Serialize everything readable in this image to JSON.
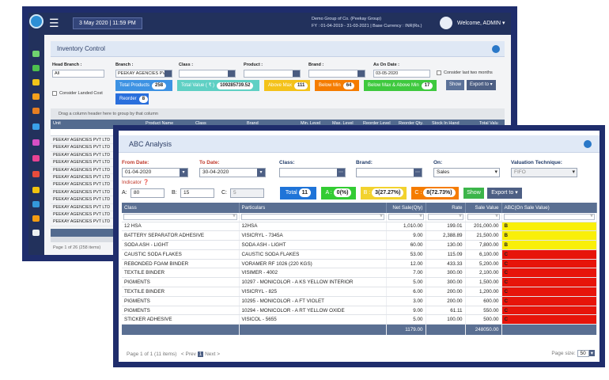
{
  "back": {
    "date_chip": "3 May 2020 | 11:59 PM",
    "group_line1": "Demo Group of Co. (Peekay Group)",
    "group_line2": "FY : 01-04-2019 - 31-03-2021  |  Base Currency : INR(Rs.)",
    "welcome": "Welcome, ADMIN",
    "panel_title": "Inventory Control",
    "filters": {
      "head_branch_label": "Head Branch :",
      "head_branch_value": "All",
      "branch_label": "Branch :",
      "branch_value": "PEEKAY AGENCIES PVT",
      "class_label": "Class :",
      "product_label": "Product :",
      "brand_label": "Brand :",
      "as_on_date_label": "As On Date :",
      "as_on_date_value": "03-05-2020",
      "consider_last_two": "Consider last two months",
      "consider_landed_cost": "Consider Landed Cost"
    },
    "pills": {
      "total_products": "Total Products",
      "total_products_n": "258",
      "total_value": "Total Value ( ₹ )",
      "total_value_n": "109285739.52",
      "above_max": "Above Max",
      "above_max_n": "111",
      "below_min": "Below Min",
      "below_min_n": "64",
      "below_above": "Below Max & Above Min",
      "below_above_n": "17",
      "reorder": "Reorder",
      "reorder_n": "8",
      "show": "Show",
      "export": "Export to"
    },
    "group_hint": "Drag a column header here to group by that column",
    "columns": [
      "Unit",
      "Product Name",
      "Class",
      "Brand",
      "Min. Level",
      "Max. Level",
      "Reorder Level",
      "Reorder Qty.",
      "Stock In Hand",
      "Total Valu"
    ],
    "rows": [
      "PEEKAY AGENCIES PVT LTD",
      "PEEKAY AGENCIES PVT LTD",
      "PEEKAY AGENCIES PVT LTD",
      "PEEKAY AGENCIES PVT LTD",
      "PEEKAY AGENCIES PVT LTD",
      "PEEKAY AGENCIES PVT LTD",
      "PEEKAY AGENCIES PVT LTD",
      "PEEKAY AGENCIES PVT LTD",
      "PEEKAY AGENCIES PVT LTD",
      "PEEKAY AGENCIES PVT LTD",
      "PEEKAY AGENCIES PVT LTD",
      "PEEKAY AGENCIES PVT LTD"
    ],
    "pager": "Page 1 of 26 (258 items)"
  },
  "front": {
    "title": "ABC Analysis",
    "from_date_label": "From Date:",
    "from_date": "01-04-2020",
    "to_date_label": "To Date:",
    "to_date": "30-04-2020",
    "class_label": "Class:",
    "brand_label": "Brand:",
    "on_label": "On:",
    "on_value": "Sales",
    "valuation_label": "Valuation Technique:",
    "valuation_value": "FIFO",
    "indicator_label": "Indicator",
    "a_label": "A:",
    "a_value": "80",
    "b_label": "B:",
    "b_value": "15",
    "c_label": "C:",
    "c_value": "5",
    "total_label": "Total",
    "total_n": "11",
    "a_stat_label": "A :",
    "a_stat_n": "0(%)",
    "b_stat_label": "B :",
    "b_stat_n": "3(27.27%)",
    "c_stat_label": "C :",
    "c_stat_n": "8(72.73%)",
    "show": "Show",
    "export": "Export to",
    "columns": {
      "class": "Class",
      "particulars": "Particulars",
      "net_sale": "Net Sale(Qty)",
      "rate": "Rate",
      "sale_value": "Sale Value",
      "abc": "ABC(On Sale Value)"
    },
    "rows": [
      {
        "class": "12 HSA",
        "particulars": "12HSA",
        "qty": "1,010.00",
        "rate": "199.01",
        "value": "201,000.00",
        "abc": "B"
      },
      {
        "class": "BATTERY SEPARATOR ADHESIVE",
        "particulars": "VISICRYL - 7345A",
        "qty": "9.00",
        "rate": "2,388.89",
        "value": "21,500.00",
        "abc": "B"
      },
      {
        "class": "SODA ASH - LIGHT",
        "particulars": "SODA ASH - LIGHT",
        "qty": "60.00",
        "rate": "130.00",
        "value": "7,800.00",
        "abc": "B"
      },
      {
        "class": "CAUSTIC SODA FLAKES",
        "particulars": "CAUSTIC SODA FLAKES",
        "qty": "53.00",
        "rate": "115.09",
        "value": "6,100.00",
        "abc": "C"
      },
      {
        "class": "REBONDED FOAM BINDER",
        "particulars": "VORAMER RF 1026 (220 KGS)",
        "qty": "12.00",
        "rate": "433.33",
        "value": "5,200.00",
        "abc": "C"
      },
      {
        "class": "TEXTILE BINDER",
        "particulars": "VISIMER - 4002",
        "qty": "7.00",
        "rate": "300.00",
        "value": "2,100.00",
        "abc": "C"
      },
      {
        "class": "PIGMENTS",
        "particulars": "10297 - MONICOLOR - A KS YELLOW INTERIOR",
        "qty": "5.00",
        "rate": "300.00",
        "value": "1,500.00",
        "abc": "C"
      },
      {
        "class": "TEXTILE BINDER",
        "particulars": "VISICRYL - 825",
        "qty": "6.00",
        "rate": "200.00",
        "value": "1,200.00",
        "abc": "C"
      },
      {
        "class": "PIGMENTS",
        "particulars": "10295 - MONICOLOR - A FT VIOLET",
        "qty": "3.00",
        "rate": "200.00",
        "value": "600.00",
        "abc": "C"
      },
      {
        "class": "PIGMENTS",
        "particulars": "10294 - MONICOLOR - A RT YELLOW OXIDE",
        "qty": "9.00",
        "rate": "61.11",
        "value": "550.00",
        "abc": "C"
      },
      {
        "class": "STICKER ADHESIVE",
        "particulars": "VISICOL - 5655",
        "qty": "5.00",
        "rate": "100.00",
        "value": "500.00",
        "abc": "C"
      }
    ],
    "total_qty": "1179.00",
    "total_value": "248050.00",
    "pager_text": "Page 1 of 1 (11 items)",
    "prev": "< Prev",
    "page_no": "1",
    "next": "Next >",
    "page_size_label": "Page size:",
    "page_size": "50"
  },
  "colors": {
    "navy": "#1f2d6c",
    "abc_b": "#f9ef09",
    "abc_c": "#e7140a",
    "total": "#1f74d8",
    "a": "#33cc33",
    "b": "#f2d22e",
    "c": "#f57c00"
  }
}
